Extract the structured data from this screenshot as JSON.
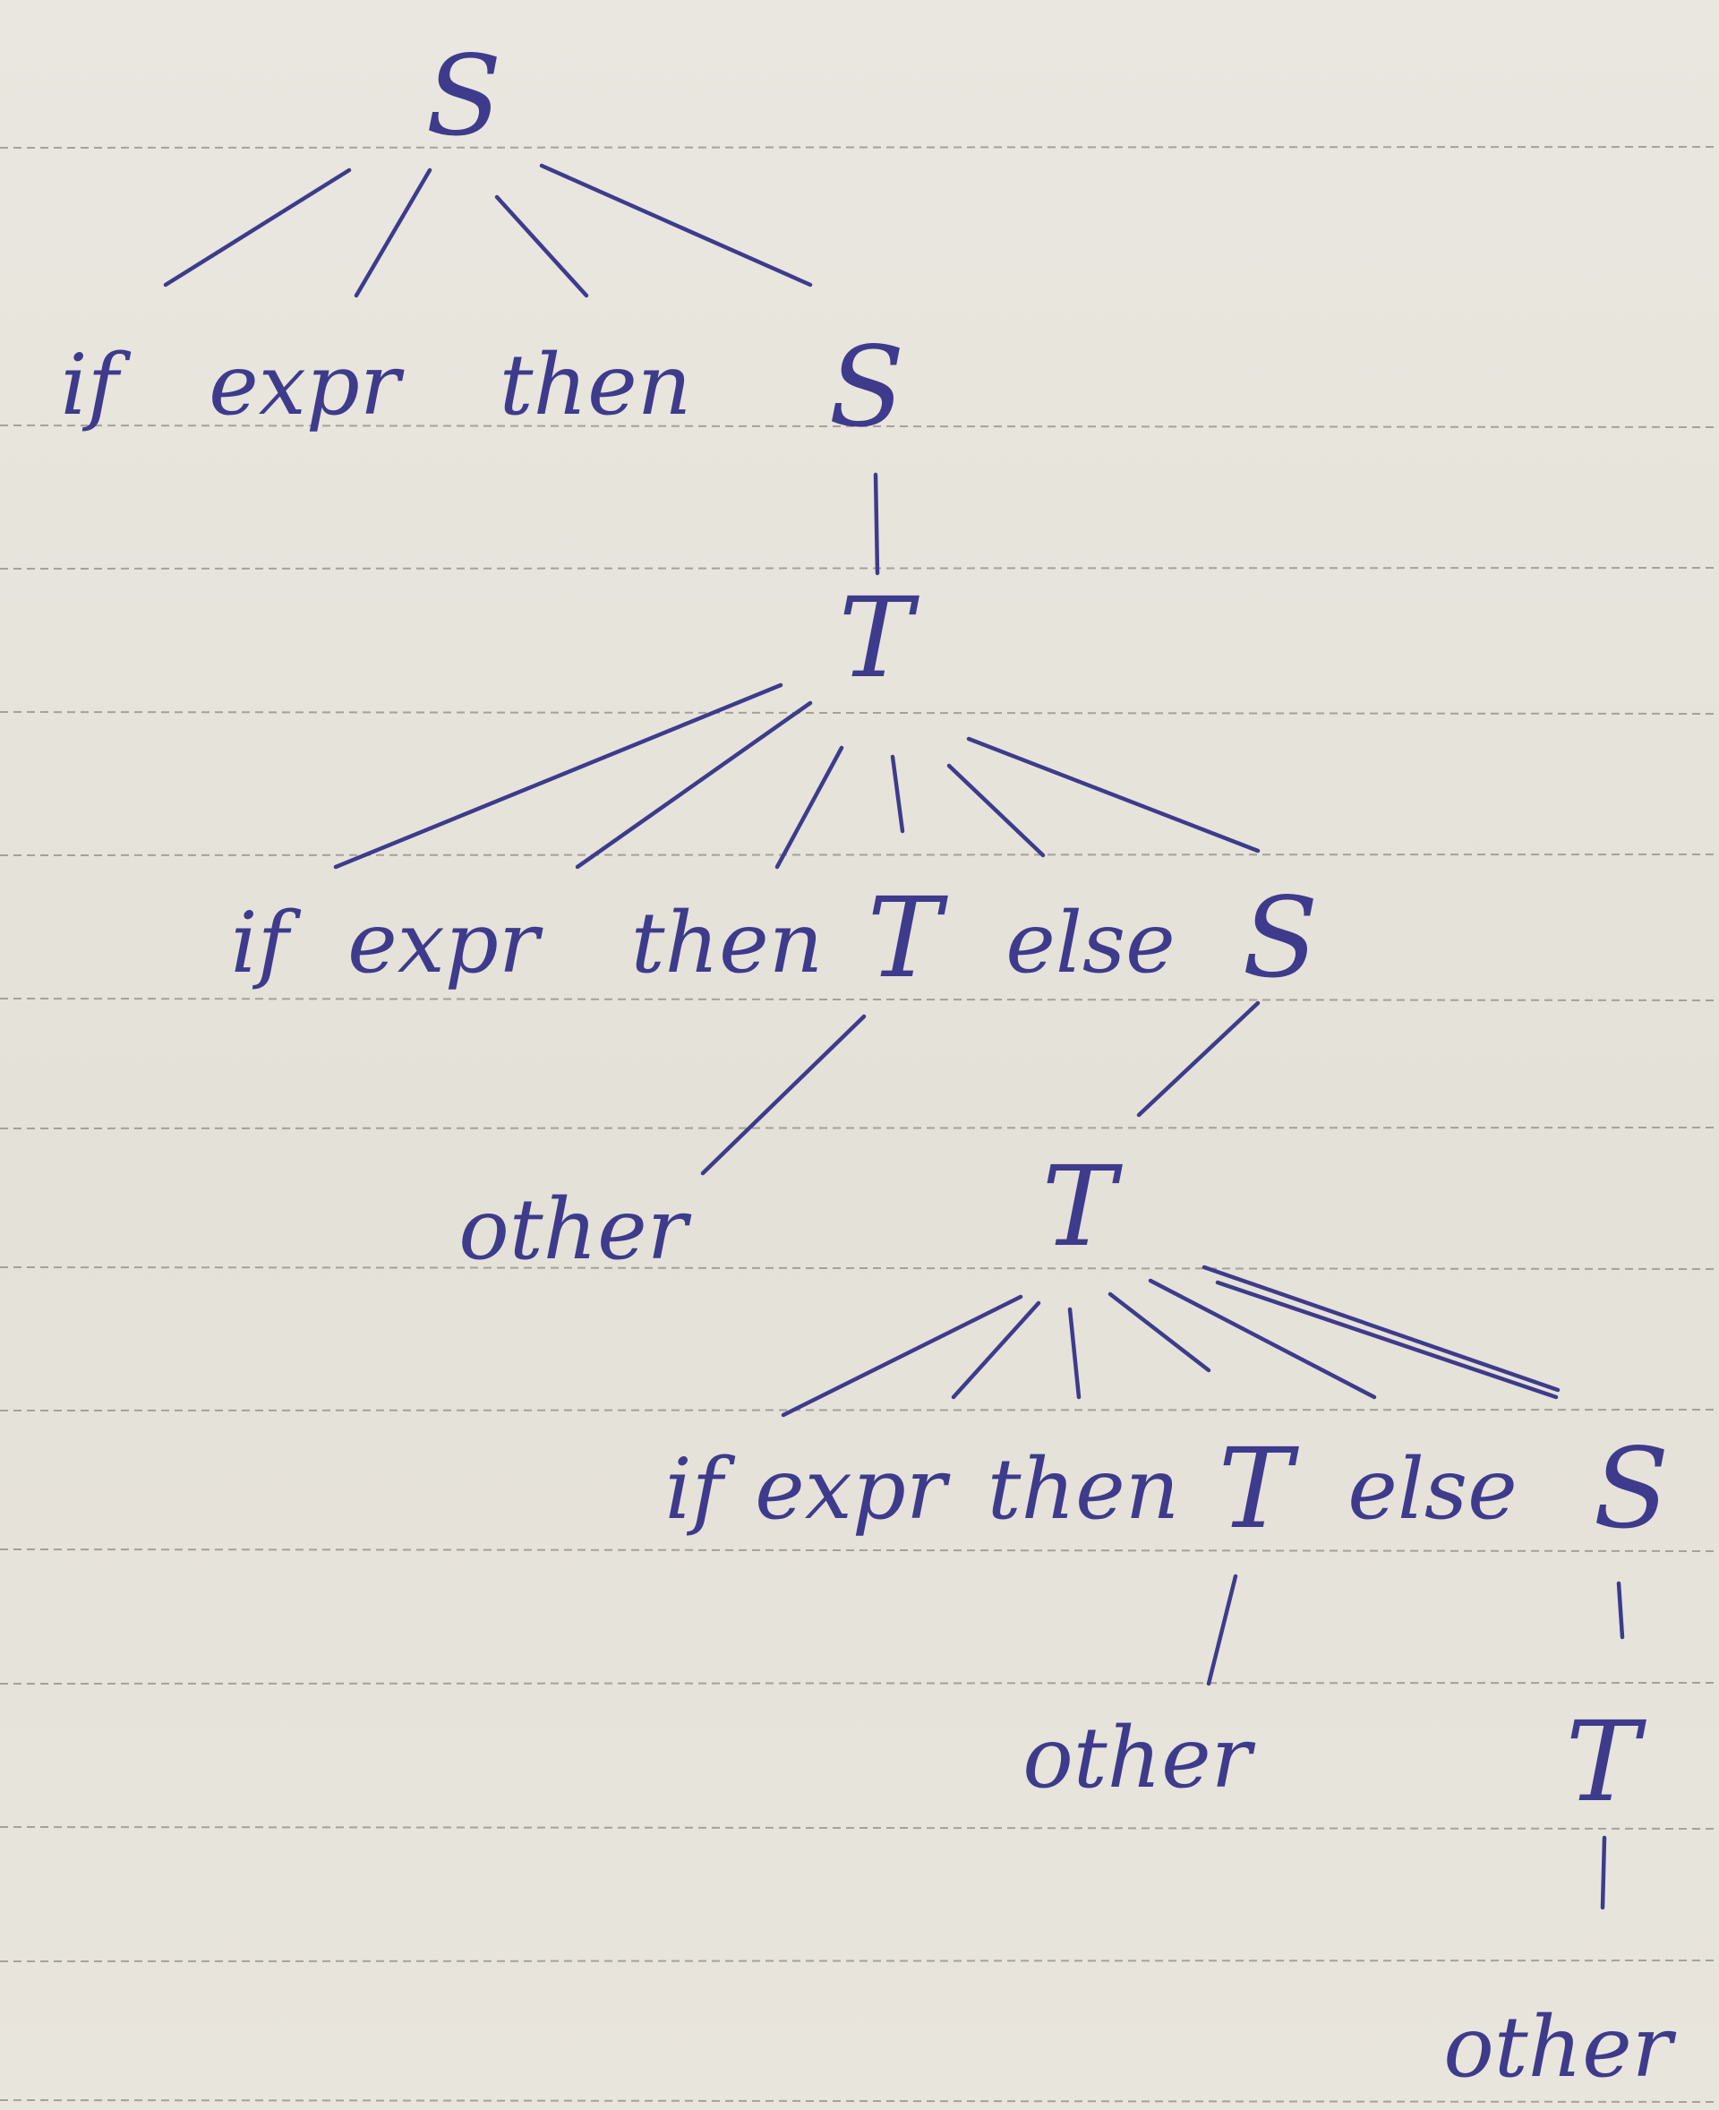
{
  "tree": {
    "nodes": {
      "s1": "S",
      "if1": "if",
      "expr1": "expr",
      "then1": "then",
      "s2": "S",
      "t1": "T",
      "if2": "if",
      "expr2": "expr",
      "then2": "then",
      "t2": "T",
      "else2": "else",
      "s3": "S",
      "other1": "other",
      "t3": "T",
      "if3": "if",
      "expr3": "expr",
      "then3": "then",
      "t4": "T",
      "else3": "else",
      "s4": "S",
      "other2": "other",
      "t5": "T",
      "other3": "other"
    },
    "edges": [
      [
        "s1",
        "if1"
      ],
      [
        "s1",
        "expr1"
      ],
      [
        "s1",
        "then1"
      ],
      [
        "s1",
        "s2"
      ],
      [
        "s2",
        "t1"
      ],
      [
        "t1",
        "if2"
      ],
      [
        "t1",
        "expr2"
      ],
      [
        "t1",
        "then2"
      ],
      [
        "t1",
        "t2"
      ],
      [
        "t1",
        "else2"
      ],
      [
        "t1",
        "s3"
      ],
      [
        "t2",
        "other1"
      ],
      [
        "s3",
        "t3"
      ],
      [
        "t3",
        "if3"
      ],
      [
        "t3",
        "expr3"
      ],
      [
        "t3",
        "then3"
      ],
      [
        "t3",
        "t4"
      ],
      [
        "t3",
        "else3"
      ],
      [
        "t3",
        "s4"
      ],
      [
        "t4",
        "other2"
      ],
      [
        "s4",
        "t5"
      ],
      [
        "t5",
        "other3"
      ]
    ]
  },
  "colors": {
    "ink": "#3e3b8c",
    "paper": "#e6e3da",
    "rule": "#8f8c86"
  }
}
